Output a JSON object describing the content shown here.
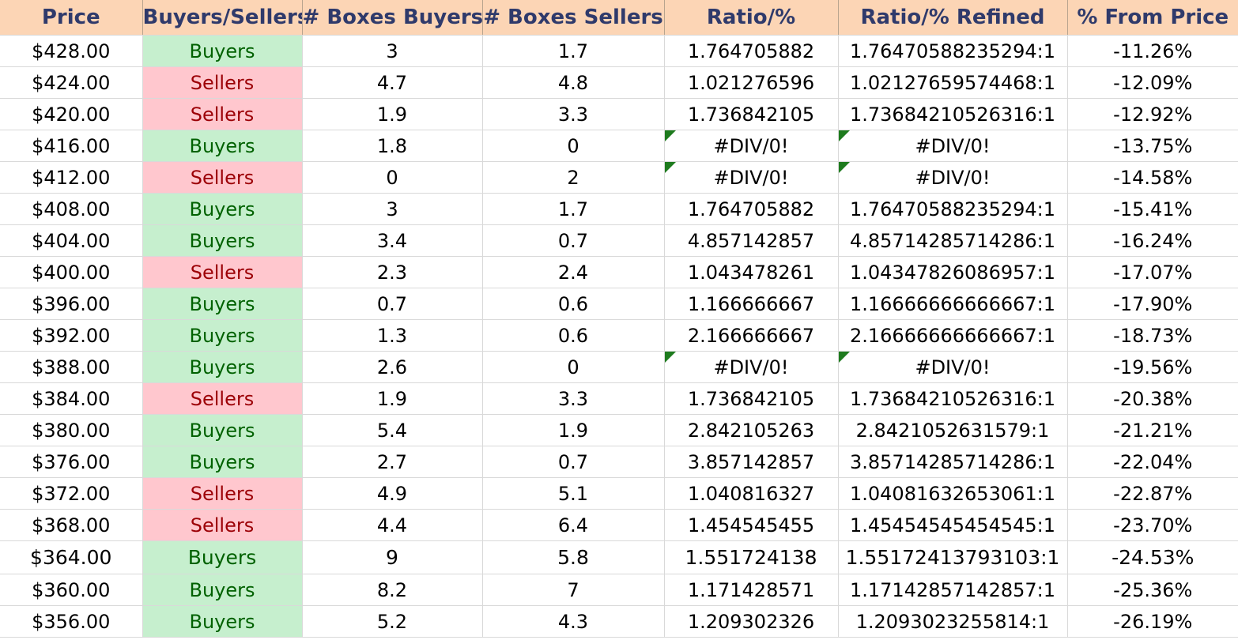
{
  "header": {
    "price": "Price",
    "buyers_sellers": "Buyers/Sellers",
    "boxes_buyers": "# Boxes Buyers",
    "boxes_sellers": "# Boxes Sellers",
    "ratio": "Ratio/%",
    "ratio_refined": "Ratio/% Refined",
    "from_price": "% From Price"
  },
  "colors": {
    "header_bg": "#fcd5b5",
    "header_text": "#2f3a6b",
    "buyers_bg": "#c6efce",
    "buyers_text": "#006100",
    "sellers_bg": "#ffc7ce",
    "sellers_text": "#9c0006",
    "error_flag": "#1e7b1e"
  },
  "rows": [
    {
      "price": "$428.00",
      "side": "Buyers",
      "boxes_buyers": "3",
      "boxes_sellers": "1.7",
      "ratio": "1.764705882",
      "refined": "1.76470588235294:1",
      "from_price": "-11.26%",
      "error": false
    },
    {
      "price": "$424.00",
      "side": "Sellers",
      "boxes_buyers": "4.7",
      "boxes_sellers": "4.8",
      "ratio": "1.021276596",
      "refined": "1.02127659574468:1",
      "from_price": "-12.09%",
      "error": false
    },
    {
      "price": "$420.00",
      "side": "Sellers",
      "boxes_buyers": "1.9",
      "boxes_sellers": "3.3",
      "ratio": "1.736842105",
      "refined": "1.73684210526316:1",
      "from_price": "-12.92%",
      "error": false
    },
    {
      "price": "$416.00",
      "side": "Buyers",
      "boxes_buyers": "1.8",
      "boxes_sellers": "0",
      "ratio": "#DIV/0!",
      "refined": "#DIV/0!",
      "from_price": "-13.75%",
      "error": true
    },
    {
      "price": "$412.00",
      "side": "Sellers",
      "boxes_buyers": "0",
      "boxes_sellers": "2",
      "ratio": "#DIV/0!",
      "refined": "#DIV/0!",
      "from_price": "-14.58%",
      "error": true
    },
    {
      "price": "$408.00",
      "side": "Buyers",
      "boxes_buyers": "3",
      "boxes_sellers": "1.7",
      "ratio": "1.764705882",
      "refined": "1.76470588235294:1",
      "from_price": "-15.41%",
      "error": false
    },
    {
      "price": "$404.00",
      "side": "Buyers",
      "boxes_buyers": "3.4",
      "boxes_sellers": "0.7",
      "ratio": "4.857142857",
      "refined": "4.85714285714286:1",
      "from_price": "-16.24%",
      "error": false
    },
    {
      "price": "$400.00",
      "side": "Sellers",
      "boxes_buyers": "2.3",
      "boxes_sellers": "2.4",
      "ratio": "1.043478261",
      "refined": "1.04347826086957:1",
      "from_price": "-17.07%",
      "error": false
    },
    {
      "price": "$396.00",
      "side": "Buyers",
      "boxes_buyers": "0.7",
      "boxes_sellers": "0.6",
      "ratio": "1.166666667",
      "refined": "1.16666666666667:1",
      "from_price": "-17.90%",
      "error": false
    },
    {
      "price": "$392.00",
      "side": "Buyers",
      "boxes_buyers": "1.3",
      "boxes_sellers": "0.6",
      "ratio": "2.166666667",
      "refined": "2.16666666666667:1",
      "from_price": "-18.73%",
      "error": false
    },
    {
      "price": "$388.00",
      "side": "Buyers",
      "boxes_buyers": "2.6",
      "boxes_sellers": "0",
      "ratio": "#DIV/0!",
      "refined": "#DIV/0!",
      "from_price": "-19.56%",
      "error": true
    },
    {
      "price": "$384.00",
      "side": "Sellers",
      "boxes_buyers": "1.9",
      "boxes_sellers": "3.3",
      "ratio": "1.736842105",
      "refined": "1.73684210526316:1",
      "from_price": "-20.38%",
      "error": false
    },
    {
      "price": "$380.00",
      "side": "Buyers",
      "boxes_buyers": "5.4",
      "boxes_sellers": "1.9",
      "ratio": "2.842105263",
      "refined": "2.8421052631579:1",
      "from_price": "-21.21%",
      "error": false
    },
    {
      "price": "$376.00",
      "side": "Buyers",
      "boxes_buyers": "2.7",
      "boxes_sellers": "0.7",
      "ratio": "3.857142857",
      "refined": "3.85714285714286:1",
      "from_price": "-22.04%",
      "error": false
    },
    {
      "price": "$372.00",
      "side": "Sellers",
      "boxes_buyers": "4.9",
      "boxes_sellers": "5.1",
      "ratio": "1.040816327",
      "refined": "1.04081632653061:1",
      "from_price": "-22.87%",
      "error": false
    },
    {
      "price": "$368.00",
      "side": "Sellers",
      "boxes_buyers": "4.4",
      "boxes_sellers": "6.4",
      "ratio": "1.454545455",
      "refined": "1.45454545454545:1",
      "from_price": "-23.70%",
      "error": false
    },
    {
      "price": "$364.00",
      "side": "Buyers",
      "boxes_buyers": "9",
      "boxes_sellers": "5.8",
      "ratio": "1.551724138",
      "refined": "1.55172413793103:1",
      "from_price": "-24.53%",
      "error": false,
      "big": true
    },
    {
      "price": "$360.00",
      "side": "Buyers",
      "boxes_buyers": "8.2",
      "boxes_sellers": "7",
      "ratio": "1.171428571",
      "refined": "1.17142857142857:1",
      "from_price": "-25.36%",
      "error": false
    },
    {
      "price": "$356.00",
      "side": "Buyers",
      "boxes_buyers": "5.2",
      "boxes_sellers": "4.3",
      "ratio": "1.209302326",
      "refined": "1.2093023255814:1",
      "from_price": "-26.19%",
      "error": false
    }
  ]
}
